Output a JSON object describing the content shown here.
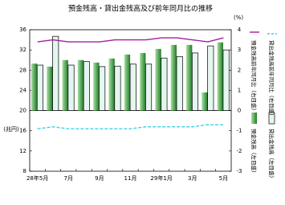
{
  "chart_data": {
    "type": "bar-line",
    "title": "預金残高・貸出金残高及び前年同月比の推移",
    "y_label": "(兆円)",
    "y2_label": "(%)",
    "categories": [
      "28年5月",
      null,
      "7月",
      null,
      "9月",
      null,
      "11月",
      null,
      "29年1月",
      null,
      "3月",
      null,
      "5月"
    ],
    "series": [
      {
        "name": "預金残高（左目盛）",
        "kind": "bar",
        "color": "#2e9a3a",
        "values": [
          29.3,
          28.7,
          30.0,
          30.0,
          29.5,
          30.3,
          31.1,
          31.4,
          32.2,
          33.0,
          33.0,
          23.6,
          33.5
        ]
      },
      {
        "name": "貸出金残高（左目盛）",
        "kind": "bar",
        "color": "#e4f6ef",
        "values": [
          29.0,
          34.7,
          29.0,
          29.7,
          28.7,
          28.8,
          29.2,
          29.2,
          30.4,
          30.7,
          31.4,
          32.8,
          32.0
        ]
      },
      {
        "name": "預金残高前年同月比（右目盛）",
        "kind": "line",
        "axis": "y2",
        "color": "#a020a0",
        "values": [
          3.4,
          3.5,
          3.4,
          3.4,
          3.4,
          3.5,
          3.5,
          3.5,
          3.6,
          3.6,
          3.5,
          3.4,
          3.6
        ]
      },
      {
        "name": "貸出金残高前年同月比（右目盛）",
        "kind": "line",
        "axis": "y2",
        "color": "#40d0e8",
        "dashed": true,
        "values": [
          -0.9,
          -0.8,
          -0.9,
          -0.9,
          -0.9,
          -0.9,
          -0.9,
          -0.8,
          -0.8,
          -0.8,
          -0.8,
          -0.7,
          -0.7
        ]
      }
    ],
    "ylim": [
      8,
      36
    ],
    "yticks": [
      8,
      12,
      16,
      20,
      24,
      28,
      32,
      36
    ],
    "y2lim": [
      -3,
      4
    ],
    "y2ticks": [
      -3,
      -2,
      -1,
      0,
      1,
      2,
      3,
      4
    ]
  }
}
